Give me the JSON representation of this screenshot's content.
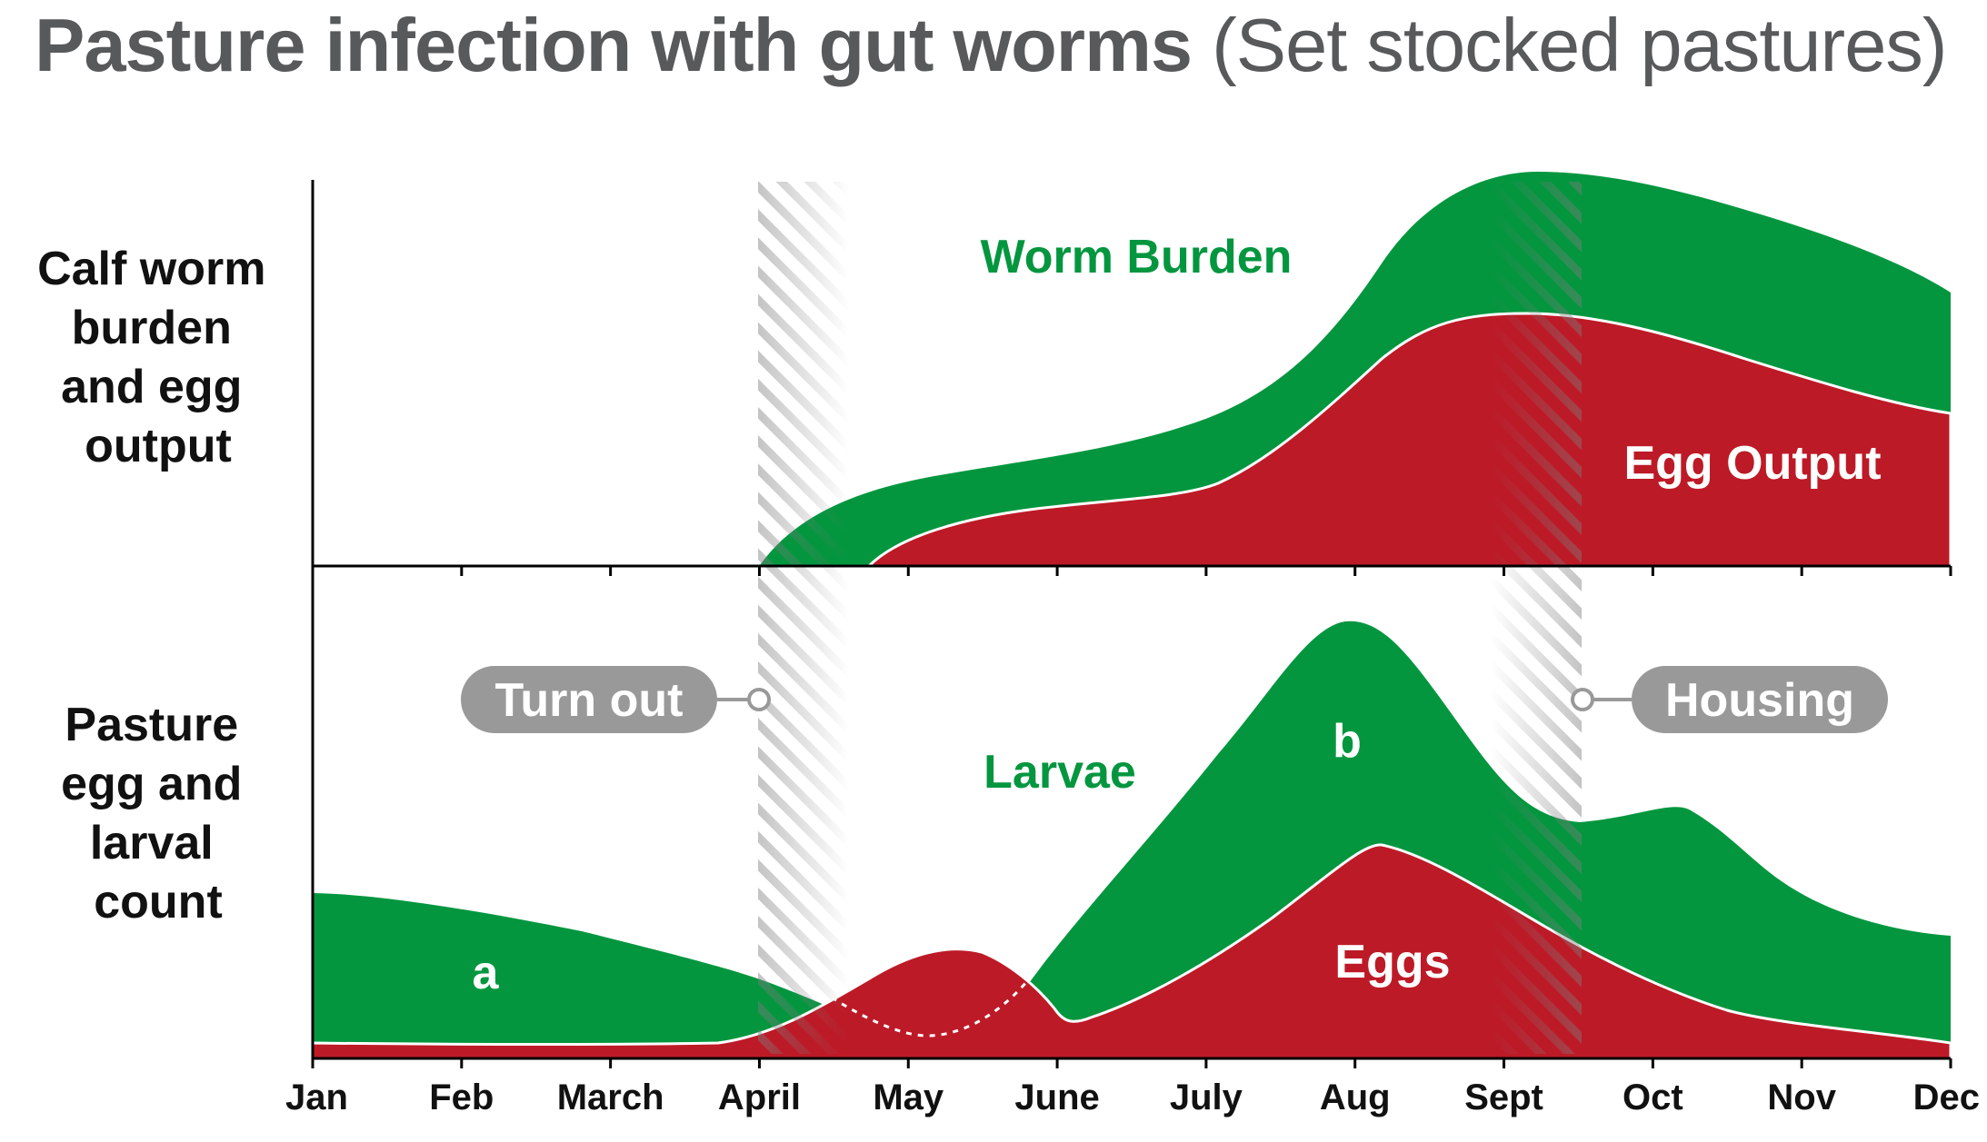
{
  "title": {
    "main": "Pasture infection with gut worms",
    "sub": "(Set stocked pastures)"
  },
  "colors": {
    "green": "#04963f",
    "red": "#bd1a27",
    "grey_pill": "#999999",
    "text_title": "#58595b"
  },
  "chart_data": [
    {
      "type": "area",
      "panel": "top",
      "ylabel": [
        "Calf worm",
        "burden",
        "and egg",
        "output"
      ],
      "x": [
        "Jan",
        "Feb",
        "March",
        "April",
        "May",
        "June",
        "July",
        "Aug",
        "Sept",
        "Oct",
        "Nov",
        "Dec"
      ],
      "series": [
        {
          "name": "Worm Burden",
          "color": "#04963f",
          "values": [
            0,
            0,
            0,
            0,
            0.25,
            0.28,
            0.38,
            0.74,
            1.0,
            0.96,
            0.83,
            0.7
          ]
        },
        {
          "name": "Egg Output",
          "color": "#bd1a27",
          "values": [
            0,
            0,
            0,
            0,
            0.1,
            0.16,
            0.2,
            0.48,
            0.65,
            0.58,
            0.47,
            0.39
          ]
        }
      ],
      "ylim": [
        0,
        1
      ],
      "annotations": []
    },
    {
      "type": "area",
      "panel": "bottom",
      "ylabel": [
        "Pasture",
        "egg and",
        "larval",
        "count"
      ],
      "x": [
        "Jan",
        "Feb",
        "March",
        "April",
        "May",
        "June",
        "July",
        "Aug",
        "Sept",
        "Oct",
        "Nov",
        "Dec"
      ],
      "series": [
        {
          "name": "Larvae",
          "color": "#04963f",
          "values": [
            0.37,
            0.32,
            0.25,
            0.17,
            0.05,
            0.08,
            0.55,
            0.89,
            0.62,
            0.5,
            0.3,
            0.25
          ]
        },
        {
          "name": "Eggs",
          "color": "#bd1a27",
          "values": [
            0.03,
            0.03,
            0.03,
            0.06,
            0.2,
            0.08,
            0.2,
            0.43,
            0.25,
            0.1,
            0.06,
            0.03
          ]
        }
      ],
      "ylim": [
        0,
        1
      ],
      "annotations": [
        {
          "label": "a",
          "month": "Feb"
        },
        {
          "label": "b",
          "month": "Aug"
        },
        {
          "label": "Turn out",
          "month": "April"
        },
        {
          "label": "Housing",
          "month": "Sept"
        }
      ]
    }
  ]
}
